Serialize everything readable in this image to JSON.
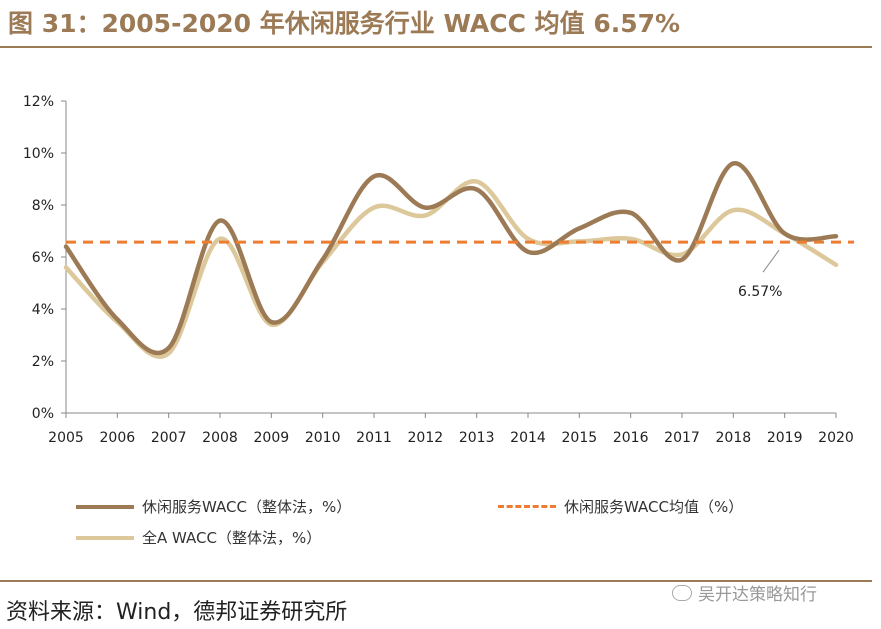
{
  "title": "图 31：2005-2020 年休闲服务行业 WACC 均值 6.57%",
  "source": "资料来源：Wind，德邦证券研究所",
  "watermark": "吴开达策略知行",
  "colors": {
    "title": "#9c7a55",
    "series_leisure": "#9c7a55",
    "series_allA": "#dcc89b",
    "mean_line": "#ed7d31"
  },
  "chart_data": {
    "type": "line",
    "title": "",
    "xlabel": "",
    "ylabel": "",
    "x": [
      "2005",
      "2006",
      "2007",
      "2008",
      "2009",
      "2010",
      "2011",
      "2012",
      "2013",
      "2014",
      "2015",
      "2016",
      "2017",
      "2018",
      "2019",
      "2020"
    ],
    "ylim": [
      0,
      12
    ],
    "yticks": [
      "0%",
      "2%",
      "4%",
      "6%",
      "8%",
      "10%",
      "12%"
    ],
    "series": [
      {
        "name": "休闲服务WACC（整体法，%）",
        "values": [
          6.4,
          3.6,
          2.5,
          7.4,
          3.5,
          5.9,
          9.1,
          7.9,
          8.6,
          6.2,
          7.1,
          7.7,
          5.9,
          9.6,
          6.9,
          6.8
        ]
      },
      {
        "name": "全A  WACC（整体法，%）",
        "values": [
          5.6,
          3.5,
          2.3,
          6.7,
          3.4,
          5.8,
          7.9,
          7.6,
          8.9,
          6.7,
          6.6,
          6.7,
          6.1,
          7.8,
          6.9,
          5.7
        ]
      }
    ],
    "mean": {
      "name": "休闲服务WACC均值（%）",
      "value": 6.57,
      "label": "6.57%"
    },
    "legend": [
      "休闲服务WACC（整体法，%）",
      "休闲服务WACC均值（%）",
      "全A  WACC（整体法，%）"
    ]
  }
}
